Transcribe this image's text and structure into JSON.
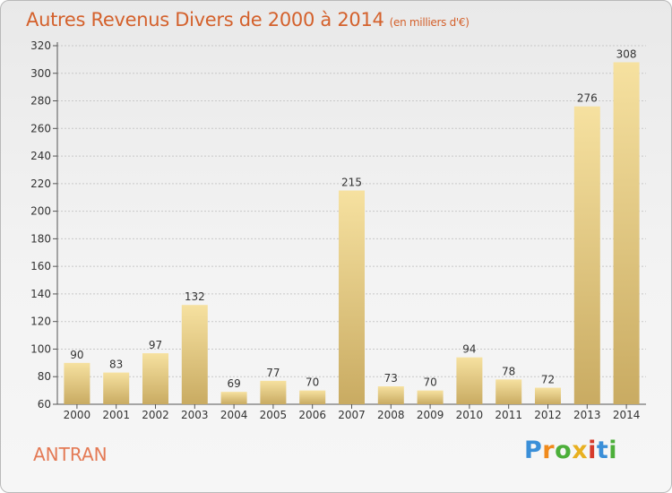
{
  "title": "Autres Revenus Divers de 2000 à 2014",
  "title_unit": "(en milliers d'€)",
  "location": "ANTRAN",
  "brand": {
    "letters": [
      "P",
      "r",
      "o",
      "x",
      "i",
      "t",
      "i"
    ],
    "colors": [
      "#3a8fd8",
      "#f08a1c",
      "#4caf3a",
      "#e8b020",
      "#d63a2a",
      "#3a8fd8",
      "#4caf3a"
    ]
  },
  "colors": {
    "title": "#d4612c",
    "bar_light": "#f6e1a0",
    "bar_dark": "#c9ab62",
    "axis_text": "#333333",
    "grid": "#c8c8c8"
  },
  "chart_data": {
    "type": "bar",
    "title": "Autres Revenus Divers de 2000 à 2014",
    "ylabel": "(en milliers d'€)",
    "categories": [
      "2000",
      "2001",
      "2002",
      "2003",
      "2004",
      "2005",
      "2006",
      "2007",
      "2008",
      "2009",
      "2010",
      "2011",
      "2012",
      "2013",
      "2014"
    ],
    "values": [
      90,
      83,
      97,
      132,
      69,
      77,
      70,
      215,
      73,
      70,
      94,
      78,
      72,
      276,
      308
    ],
    "ylim": [
      60,
      320
    ],
    "yticks": [
      60,
      80,
      100,
      120,
      140,
      160,
      180,
      200,
      220,
      240,
      260,
      280,
      300,
      320
    ],
    "grid": true,
    "legend": "none"
  }
}
